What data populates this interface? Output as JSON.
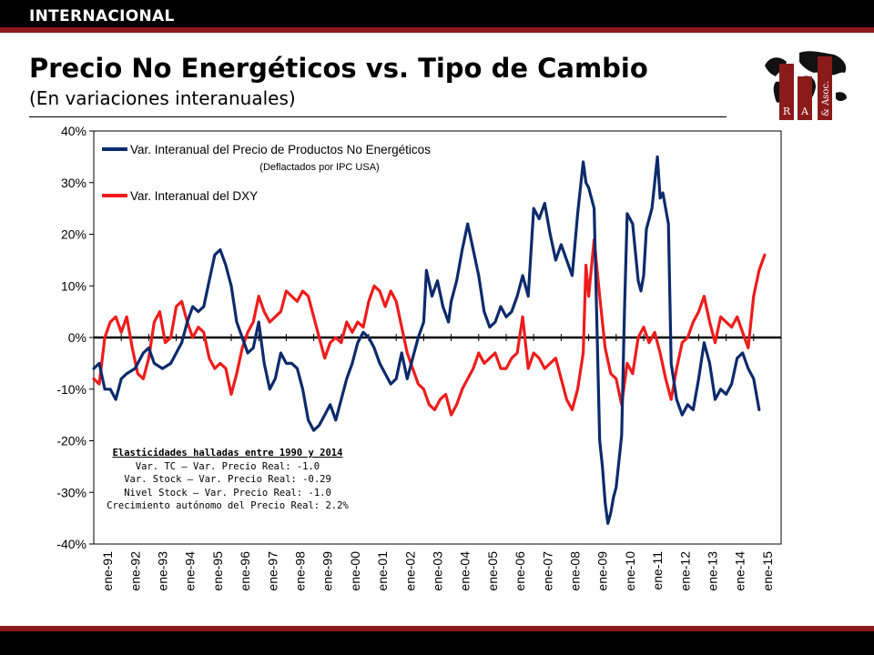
{
  "header": {
    "section": "INTERNACIONAL",
    "title": "Precio No Energéticos vs. Tipo de Cambio",
    "subtitle": "(En variaciones interanuales)"
  },
  "logo": {
    "letters": [
      "R",
      "A",
      "& Asoc."
    ]
  },
  "colors": {
    "header_bar": "#000000",
    "accent_red": "#8b1a1a",
    "series_blue": "#0d2a6b",
    "series_red": "#ee1c1c"
  },
  "note": {
    "heading": "Elasticidades halladas entre 1990 y 2014",
    "lines": [
      "Var. TC – Var. Precio Real: -1.0",
      "Var. Stock – Var. Precio Real: -0.29",
      "Nivel Stock – Var. Precio Real: -1.0",
      "Crecimiento autónomo del Precio Real: 2.2%"
    ]
  },
  "chart_data": {
    "type": "line",
    "title": "Precio No Energéticos vs. Tipo de Cambio",
    "subtitle": "(En variaciones interanuales)",
    "ylim": [
      -40,
      40
    ],
    "y_ticks": [
      "40%",
      "30%",
      "20%",
      "10%",
      "0%",
      "-10%",
      "-20%",
      "-30%",
      "-40%"
    ],
    "categories": [
      "ene-91",
      "ene-92",
      "ene-93",
      "ene-94",
      "ene-95",
      "ene-96",
      "ene-97",
      "ene-98",
      "ene-99",
      "ene-00",
      "ene-01",
      "ene-02",
      "ene-03",
      "ene-04",
      "ene-05",
      "ene-06",
      "ene-07",
      "ene-08",
      "ene-09",
      "ene-10",
      "ene-11",
      "ene-12",
      "ene-13",
      "ene-14",
      "ene-15"
    ],
    "x_range_years": [
      1991,
      2015.4
    ],
    "grid": false,
    "legend_position": "top-left",
    "series": [
      {
        "name": "Var. Interanual del Precio de Productos No Energéticos",
        "name_note": "(Deflactados por IPC USA)",
        "color": "#0d2a6b",
        "points": [
          [
            1991.0,
            -6
          ],
          [
            1991.2,
            -5
          ],
          [
            1991.4,
            -10
          ],
          [
            1991.6,
            -10
          ],
          [
            1991.8,
            -12
          ],
          [
            1992.0,
            -8
          ],
          [
            1992.2,
            -7
          ],
          [
            1992.5,
            -6
          ],
          [
            1992.8,
            -3
          ],
          [
            1993.0,
            -2
          ],
          [
            1993.2,
            -5
          ],
          [
            1993.5,
            -6
          ],
          [
            1993.8,
            -5
          ],
          [
            1994.0,
            -3
          ],
          [
            1994.2,
            -1
          ],
          [
            1994.4,
            3
          ],
          [
            1994.6,
            6
          ],
          [
            1994.8,
            5
          ],
          [
            1995.0,
            6
          ],
          [
            1995.2,
            11
          ],
          [
            1995.4,
            16
          ],
          [
            1995.6,
            17
          ],
          [
            1995.8,
            14
          ],
          [
            1996.0,
            10
          ],
          [
            1996.2,
            3
          ],
          [
            1996.4,
            0
          ],
          [
            1996.6,
            -3
          ],
          [
            1996.8,
            -2
          ],
          [
            1997.0,
            3
          ],
          [
            1997.2,
            -5
          ],
          [
            1997.4,
            -10
          ],
          [
            1997.6,
            -8
          ],
          [
            1997.8,
            -3
          ],
          [
            1998.0,
            -5
          ],
          [
            1998.2,
            -5
          ],
          [
            1998.4,
            -6
          ],
          [
            1998.6,
            -10
          ],
          [
            1998.8,
            -16
          ],
          [
            1999.0,
            -18
          ],
          [
            1999.2,
            -17
          ],
          [
            1999.4,
            -15
          ],
          [
            1999.6,
            -13
          ],
          [
            1999.8,
            -16
          ],
          [
            2000.0,
            -12
          ],
          [
            2000.2,
            -8
          ],
          [
            2000.4,
            -5
          ],
          [
            2000.6,
            -1
          ],
          [
            2000.8,
            1
          ],
          [
            2001.0,
            0
          ],
          [
            2001.2,
            -2
          ],
          [
            2001.4,
            -5
          ],
          [
            2001.6,
            -7
          ],
          [
            2001.8,
            -9
          ],
          [
            2002.0,
            -8
          ],
          [
            2002.2,
            -3
          ],
          [
            2002.4,
            -8
          ],
          [
            2002.6,
            -4
          ],
          [
            2002.8,
            0
          ],
          [
            2003.0,
            3
          ],
          [
            2003.1,
            13
          ],
          [
            2003.3,
            8
          ],
          [
            2003.5,
            11
          ],
          [
            2003.7,
            6
          ],
          [
            2003.9,
            3
          ],
          [
            2004.0,
            7
          ],
          [
            2004.2,
            11
          ],
          [
            2004.4,
            17
          ],
          [
            2004.6,
            22
          ],
          [
            2004.8,
            17
          ],
          [
            2005.0,
            12
          ],
          [
            2005.2,
            5
          ],
          [
            2005.4,
            2
          ],
          [
            2005.6,
            3
          ],
          [
            2005.8,
            6
          ],
          [
            2006.0,
            4
          ],
          [
            2006.2,
            5
          ],
          [
            2006.4,
            8
          ],
          [
            2006.6,
            12
          ],
          [
            2006.8,
            8
          ],
          [
            2007.0,
            25
          ],
          [
            2007.2,
            23
          ],
          [
            2007.4,
            26
          ],
          [
            2007.6,
            20
          ],
          [
            2007.8,
            15
          ],
          [
            2008.0,
            18
          ],
          [
            2008.2,
            15
          ],
          [
            2008.4,
            12
          ],
          [
            2008.6,
            24
          ],
          [
            2008.8,
            34
          ],
          [
            2008.9,
            30
          ],
          [
            2009.0,
            29
          ],
          [
            2009.2,
            25
          ],
          [
            2009.4,
            -20
          ],
          [
            2009.5,
            -25
          ],
          [
            2009.6,
            -32
          ],
          [
            2009.7,
            -36
          ],
          [
            2009.8,
            -34
          ],
          [
            2009.9,
            -31
          ],
          [
            2010.0,
            -29
          ],
          [
            2010.2,
            -19
          ],
          [
            2010.3,
            5
          ],
          [
            2010.4,
            24
          ],
          [
            2010.6,
            22
          ],
          [
            2010.8,
            11
          ],
          [
            2010.9,
            9
          ],
          [
            2011.0,
            12
          ],
          [
            2011.1,
            21
          ],
          [
            2011.3,
            25
          ],
          [
            2011.5,
            35
          ],
          [
            2011.6,
            27
          ],
          [
            2011.7,
            28
          ],
          [
            2011.9,
            22
          ],
          [
            2012.0,
            -5
          ],
          [
            2012.2,
            -12
          ],
          [
            2012.4,
            -15
          ],
          [
            2012.6,
            -13
          ],
          [
            2012.8,
            -14
          ],
          [
            2013.0,
            -8
          ],
          [
            2013.2,
            -1
          ],
          [
            2013.4,
            -5
          ],
          [
            2013.6,
            -12
          ],
          [
            2013.8,
            -10
          ],
          [
            2014.0,
            -11
          ],
          [
            2014.2,
            -9
          ],
          [
            2014.4,
            -4
          ],
          [
            2014.6,
            -3
          ],
          [
            2014.8,
            -6
          ],
          [
            2015.0,
            -8
          ],
          [
            2015.2,
            -14
          ]
        ]
      },
      {
        "name": "Var. Interanual del DXY",
        "color": "#ee1c1c",
        "points": [
          [
            1991.0,
            -8
          ],
          [
            1991.2,
            -9
          ],
          [
            1991.4,
            0
          ],
          [
            1991.6,
            3
          ],
          [
            1991.8,
            4
          ],
          [
            1992.0,
            1
          ],
          [
            1992.2,
            4
          ],
          [
            1992.4,
            -2
          ],
          [
            1992.6,
            -7
          ],
          [
            1992.8,
            -8
          ],
          [
            1993.0,
            -4
          ],
          [
            1993.2,
            3
          ],
          [
            1993.4,
            5
          ],
          [
            1993.6,
            -1
          ],
          [
            1993.8,
            0
          ],
          [
            1994.0,
            6
          ],
          [
            1994.2,
            7
          ],
          [
            1994.4,
            3
          ],
          [
            1994.6,
            0
          ],
          [
            1994.8,
            2
          ],
          [
            1995.0,
            1
          ],
          [
            1995.2,
            -4
          ],
          [
            1995.4,
            -6
          ],
          [
            1995.6,
            -5
          ],
          [
            1995.8,
            -6
          ],
          [
            1996.0,
            -11
          ],
          [
            1996.2,
            -7
          ],
          [
            1996.4,
            -2
          ],
          [
            1996.6,
            1
          ],
          [
            1996.8,
            3
          ],
          [
            1997.0,
            8
          ],
          [
            1997.2,
            5
          ],
          [
            1997.4,
            3
          ],
          [
            1997.6,
            4
          ],
          [
            1997.8,
            5
          ],
          [
            1998.0,
            9
          ],
          [
            1998.2,
            8
          ],
          [
            1998.4,
            7
          ],
          [
            1998.6,
            9
          ],
          [
            1998.8,
            8
          ],
          [
            1999.0,
            4
          ],
          [
            1999.2,
            0
          ],
          [
            1999.4,
            -4
          ],
          [
            1999.6,
            -1
          ],
          [
            1999.8,
            0
          ],
          [
            2000.0,
            -1
          ],
          [
            2000.2,
            3
          ],
          [
            2000.4,
            1
          ],
          [
            2000.6,
            3
          ],
          [
            2000.8,
            2
          ],
          [
            2001.0,
            7
          ],
          [
            2001.2,
            10
          ],
          [
            2001.4,
            9
          ],
          [
            2001.6,
            6
          ],
          [
            2001.8,
            9
          ],
          [
            2002.0,
            7
          ],
          [
            2002.2,
            2
          ],
          [
            2002.4,
            -3
          ],
          [
            2002.6,
            -6
          ],
          [
            2002.8,
            -9
          ],
          [
            2003.0,
            -10
          ],
          [
            2003.2,
            -13
          ],
          [
            2003.4,
            -14
          ],
          [
            2003.6,
            -12
          ],
          [
            2003.8,
            -11
          ],
          [
            2004.0,
            -15
          ],
          [
            2004.2,
            -13
          ],
          [
            2004.4,
            -10
          ],
          [
            2004.6,
            -8
          ],
          [
            2004.8,
            -6
          ],
          [
            2005.0,
            -3
          ],
          [
            2005.2,
            -5
          ],
          [
            2005.4,
            -4
          ],
          [
            2005.6,
            -3
          ],
          [
            2005.8,
            -6
          ],
          [
            2006.0,
            -6
          ],
          [
            2006.2,
            -4
          ],
          [
            2006.4,
            -3
          ],
          [
            2006.6,
            4
          ],
          [
            2006.8,
            -6
          ],
          [
            2007.0,
            -3
          ],
          [
            2007.2,
            -4
          ],
          [
            2007.4,
            -6
          ],
          [
            2007.6,
            -5
          ],
          [
            2007.8,
            -4
          ],
          [
            2008.0,
            -8
          ],
          [
            2008.2,
            -12
          ],
          [
            2008.4,
            -14
          ],
          [
            2008.6,
            -10
          ],
          [
            2008.8,
            -3
          ],
          [
            2008.9,
            14
          ],
          [
            2009.0,
            8
          ],
          [
            2009.2,
            19
          ],
          [
            2009.4,
            8
          ],
          [
            2009.6,
            -2
          ],
          [
            2009.8,
            -7
          ],
          [
            2010.0,
            -8
          ],
          [
            2010.2,
            -13
          ],
          [
            2010.4,
            -5
          ],
          [
            2010.6,
            -7
          ],
          [
            2010.8,
            0
          ],
          [
            2011.0,
            2
          ],
          [
            2011.2,
            -1
          ],
          [
            2011.4,
            1
          ],
          [
            2011.6,
            -3
          ],
          [
            2011.8,
            -8
          ],
          [
            2012.0,
            -12
          ],
          [
            2012.2,
            -6
          ],
          [
            2012.4,
            -1
          ],
          [
            2012.6,
            0
          ],
          [
            2012.8,
            3
          ],
          [
            2013.0,
            5
          ],
          [
            2013.2,
            8
          ],
          [
            2013.4,
            3
          ],
          [
            2013.6,
            -1
          ],
          [
            2013.8,
            4
          ],
          [
            2014.0,
            3
          ],
          [
            2014.2,
            2
          ],
          [
            2014.4,
            4
          ],
          [
            2014.6,
            1
          ],
          [
            2014.8,
            -2
          ],
          [
            2015.0,
            8
          ],
          [
            2015.2,
            13
          ],
          [
            2015.4,
            16
          ]
        ]
      }
    ]
  }
}
